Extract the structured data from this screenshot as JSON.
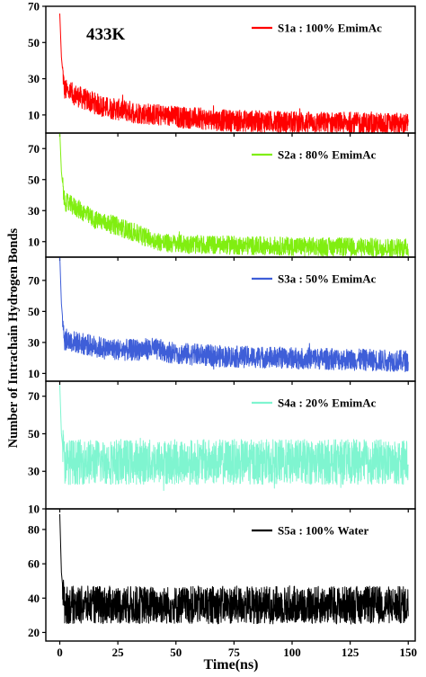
{
  "figure": {
    "temperature_label": "433K",
    "ylabel": "Number of Intrachain Hydrogen Bonds",
    "xlabel": "Time(ns)"
  },
  "chart_data": [
    {
      "type": "line",
      "legend": "S1a : 100% EmimAc",
      "color": "#ff0000",
      "xlim": [
        -6,
        153
      ],
      "ylim": [
        0,
        70
      ],
      "x_ticks": [
        0,
        25,
        50,
        75,
        100,
        125,
        150
      ],
      "y_ticks": [
        10,
        30,
        50,
        70
      ],
      "profile": [
        [
          0,
          66
        ],
        [
          0.7,
          42
        ],
        [
          2,
          24
        ],
        [
          10,
          19
        ],
        [
          20,
          14
        ],
        [
          35,
          11
        ],
        [
          50,
          9
        ],
        [
          70,
          7
        ],
        [
          100,
          6
        ],
        [
          150,
          5
        ]
      ],
      "band": 6
    },
    {
      "type": "line",
      "legend": "S2a : 80% EmimAc",
      "color": "#80ee10",
      "xlim": [
        -6,
        153
      ],
      "ylim": [
        0,
        80
      ],
      "x_ticks": [
        0,
        25,
        50,
        75,
        100,
        125,
        150
      ],
      "y_ticks": [
        10,
        30,
        50,
        70
      ],
      "profile": [
        [
          0,
          81
        ],
        [
          0.7,
          55
        ],
        [
          2,
          36
        ],
        [
          8,
          31
        ],
        [
          15,
          24
        ],
        [
          25,
          20
        ],
        [
          35,
          14
        ],
        [
          45,
          9
        ],
        [
          60,
          8
        ],
        [
          100,
          7
        ],
        [
          150,
          6
        ]
      ],
      "band": 6
    },
    {
      "type": "line",
      "legend": "S3a : 50% EmimAc",
      "color": "#3e5ed8",
      "xlim": [
        -6,
        153
      ],
      "ylim": [
        5,
        85
      ],
      "x_ticks": [
        0,
        25,
        50,
        75,
        100,
        125,
        150
      ],
      "y_ticks": [
        10,
        30,
        50,
        70
      ],
      "profile": [
        [
          0,
          86
        ],
        [
          0.7,
          55
        ],
        [
          2,
          32
        ],
        [
          10,
          29
        ],
        [
          20,
          26
        ],
        [
          30,
          25
        ],
        [
          40,
          26
        ],
        [
          50,
          23
        ],
        [
          70,
          21
        ],
        [
          100,
          20
        ],
        [
          150,
          18
        ]
      ],
      "band": 7
    },
    {
      "type": "line",
      "legend": "S4a : 20% EmimAc",
      "color": "#7ff5d0",
      "xlim": [
        -6,
        153
      ],
      "ylim": [
        10,
        78
      ],
      "x_ticks": [
        0,
        25,
        50,
        75,
        100,
        125,
        150
      ],
      "y_ticks": [
        10,
        30,
        50,
        70
      ],
      "profile": [
        [
          0,
          76
        ],
        [
          0.7,
          50
        ],
        [
          2,
          35
        ],
        [
          150,
          35
        ]
      ],
      "band": 12
    },
    {
      "type": "line",
      "legend": "S5a : 100% Water",
      "color": "#000000",
      "xlim": [
        -6,
        153
      ],
      "ylim": [
        15,
        92
      ],
      "x_ticks": [
        0,
        25,
        50,
        75,
        100,
        125,
        150
      ],
      "y_ticks": [
        20,
        40,
        60,
        80
      ],
      "profile": [
        [
          0,
          89
        ],
        [
          0.7,
          55
        ],
        [
          2,
          36
        ],
        [
          150,
          36
        ]
      ],
      "band": 11
    }
  ]
}
